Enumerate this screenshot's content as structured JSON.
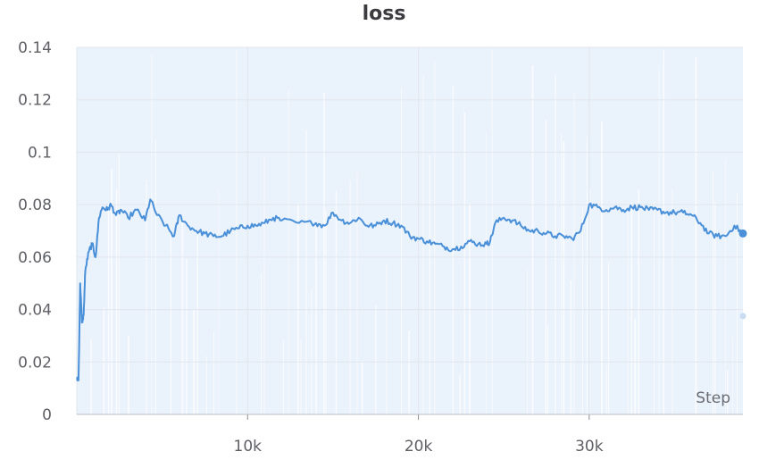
{
  "chart_data": {
    "type": "line",
    "title": "loss",
    "xlabel": "Step",
    "ylabel": "",
    "xlim": [
      0,
      39000
    ],
    "ylim": [
      0,
      0.14
    ],
    "x_ticks": [
      10000,
      20000,
      30000
    ],
    "x_tick_labels": [
      "10k",
      "20k",
      "30k"
    ],
    "y_ticks": [
      0,
      0.02,
      0.04,
      0.06,
      0.08,
      0.1,
      0.12,
      0.14
    ],
    "y_tick_labels": [
      "0",
      "0.02",
      "0.04",
      "0.06",
      "0.08",
      "0.1",
      "0.12",
      "0.14"
    ],
    "grid": true,
    "colors": {
      "line": "#4a90d9",
      "raw_fill": "#eaf2fb",
      "raw_spike": "#ffffff",
      "grid": "#e3e6ec"
    },
    "series": [
      {
        "smoothed": true,
        "x": [
          0,
          100,
          200,
          300,
          400,
          500,
          700,
          900,
          1100,
          1300,
          1500,
          1800,
          2000,
          2300,
          2600,
          3000,
          3500,
          4000,
          4300,
          4700,
          5200,
          5700,
          6000,
          6500,
          7000,
          7500,
          8000,
          8500,
          9000,
          9500,
          10000,
          10500,
          11000,
          11500,
          12000,
          13000,
          14000,
          14500,
          15000,
          15500,
          16000,
          16500,
          17000,
          17500,
          18000,
          18500,
          19000,
          19500,
          20000,
          20500,
          21000,
          21500,
          22000,
          22500,
          23000,
          23500,
          24000,
          24200,
          24500,
          25000,
          25500,
          26000,
          26500,
          27000,
          27500,
          28000,
          28500,
          29000,
          29500,
          30000,
          30500,
          31000,
          31500,
          32000,
          32500,
          33000,
          33500,
          34000,
          34500,
          35000,
          35500,
          36000,
          36500,
          37000,
          37500,
          38000,
          38500,
          39000
        ],
        "y": [
          0.014,
          0.013,
          0.05,
          0.035,
          0.038,
          0.055,
          0.062,
          0.065,
          0.06,
          0.075,
          0.079,
          0.078,
          0.08,
          0.076,
          0.078,
          0.075,
          0.078,
          0.074,
          0.082,
          0.076,
          0.072,
          0.068,
          0.076,
          0.072,
          0.07,
          0.069,
          0.068,
          0.068,
          0.07,
          0.071,
          0.072,
          0.072,
          0.073,
          0.075,
          0.074,
          0.073,
          0.073,
          0.072,
          0.077,
          0.074,
          0.073,
          0.075,
          0.072,
          0.072,
          0.074,
          0.073,
          0.072,
          0.068,
          0.067,
          0.066,
          0.065,
          0.064,
          0.063,
          0.064,
          0.066,
          0.065,
          0.065,
          0.066,
          0.073,
          0.075,
          0.074,
          0.072,
          0.07,
          0.07,
          0.069,
          0.068,
          0.068,
          0.067,
          0.07,
          0.08,
          0.079,
          0.078,
          0.079,
          0.078,
          0.079,
          0.079,
          0.078,
          0.078,
          0.077,
          0.077,
          0.077,
          0.076,
          0.073,
          0.069,
          0.068,
          0.068,
          0.072,
          0.069
        ]
      },
      {
        "smoothed": false,
        "x": [
          39000
        ],
        "y": [
          0.0375
        ]
      }
    ]
  }
}
